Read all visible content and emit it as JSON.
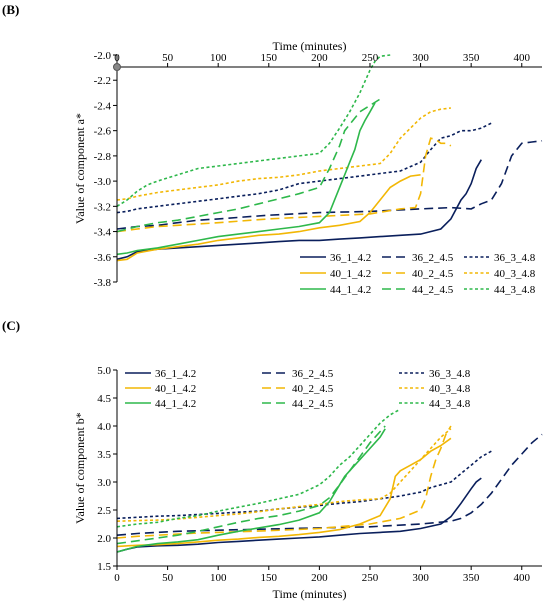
{
  "chart_data": [
    {
      "panel": "(B)",
      "type": "line",
      "xlabel": "Time (minutes)",
      "ylabel": "Value of component a*",
      "xlim": [
        0,
        420
      ],
      "ylim": [
        -3.8,
        -2.0
      ],
      "x_axis_position": "top",
      "xticks": [
        0,
        50,
        100,
        150,
        200,
        250,
        300,
        350,
        400
      ],
      "yticks": [
        "-2.0",
        "-2.2",
        "-2.4",
        "-2.6",
        "-2.8",
        "-3.0",
        "-3.2",
        "-3.4",
        "-3.6",
        "-3.8"
      ],
      "legend_position": "bottom-right",
      "grid": false,
      "series": [
        {
          "name": "36_1_4.2",
          "color": "#0a1f5c",
          "dash": "solid",
          "x": [
            0,
            10,
            20,
            40,
            60,
            80,
            100,
            120,
            140,
            160,
            180,
            200,
            220,
            240,
            260,
            280,
            300,
            320,
            330,
            340,
            345,
            350,
            355,
            360
          ],
          "y": [
            -3.62,
            -3.6,
            -3.56,
            -3.54,
            -3.53,
            -3.52,
            -3.51,
            -3.5,
            -3.49,
            -3.48,
            -3.47,
            -3.47,
            -3.46,
            -3.45,
            -3.44,
            -3.43,
            -3.42,
            -3.38,
            -3.3,
            -3.15,
            -3.1,
            -3.02,
            -2.9,
            -2.83
          ]
        },
        {
          "name": "36_2_4.5",
          "color": "#0a1f5c",
          "dash": "long",
          "x": [
            0,
            20,
            40,
            60,
            80,
            100,
            150,
            200,
            250,
            300,
            330,
            350,
            360,
            370,
            380,
            390,
            400,
            410,
            420
          ],
          "y": [
            -3.38,
            -3.36,
            -3.35,
            -3.33,
            -3.31,
            -3.3,
            -3.27,
            -3.25,
            -3.24,
            -3.22,
            -3.21,
            -3.22,
            -3.18,
            -3.15,
            -3.02,
            -2.8,
            -2.7,
            -2.69,
            -2.68
          ]
        },
        {
          "name": "36_3_4.8",
          "color": "#0a1f5c",
          "dash": "short",
          "x": [
            0,
            10,
            20,
            40,
            60,
            80,
            100,
            120,
            140,
            160,
            180,
            200,
            220,
            240,
            260,
            280,
            300,
            310,
            320,
            330,
            340,
            350,
            360,
            370
          ],
          "y": [
            -3.25,
            -3.24,
            -3.22,
            -3.2,
            -3.18,
            -3.16,
            -3.14,
            -3.12,
            -3.1,
            -3.07,
            -3.02,
            -3.0,
            -2.98,
            -2.96,
            -2.94,
            -2.92,
            -2.85,
            -2.75,
            -2.66,
            -2.64,
            -2.6,
            -2.6,
            -2.58,
            -2.54
          ]
        },
        {
          "name": "40_1_4.2",
          "color": "#f2b705",
          "dash": "solid",
          "x": [
            0,
            10,
            20,
            40,
            60,
            80,
            100,
            120,
            140,
            160,
            180,
            200,
            220,
            240,
            250,
            260,
            270,
            280,
            290,
            300
          ],
          "y": [
            -3.63,
            -3.62,
            -3.57,
            -3.54,
            -3.52,
            -3.5,
            -3.47,
            -3.45,
            -3.43,
            -3.42,
            -3.4,
            -3.37,
            -3.35,
            -3.32,
            -3.25,
            -3.15,
            -3.05,
            -3.0,
            -2.96,
            -2.95
          ]
        },
        {
          "name": "40_2_4.5",
          "color": "#f2b705",
          "dash": "long",
          "x": [
            0,
            20,
            40,
            60,
            80,
            100,
            150,
            200,
            250,
            280,
            295,
            300,
            305,
            310,
            315,
            320,
            325,
            330
          ],
          "y": [
            -3.4,
            -3.38,
            -3.36,
            -3.35,
            -3.34,
            -3.33,
            -3.3,
            -3.28,
            -3.26,
            -3.22,
            -3.21,
            -3.1,
            -2.8,
            -2.66,
            -2.67,
            -2.7,
            -2.7,
            -2.72
          ]
        },
        {
          "name": "40_3_4.8",
          "color": "#f2b705",
          "dash": "short",
          "x": [
            0,
            10,
            20,
            40,
            60,
            80,
            100,
            120,
            140,
            160,
            180,
            200,
            220,
            240,
            260,
            270,
            280,
            290,
            300,
            310,
            320,
            330
          ],
          "y": [
            -3.15,
            -3.14,
            -3.12,
            -3.09,
            -3.07,
            -3.05,
            -3.03,
            -3.0,
            -2.98,
            -2.97,
            -2.95,
            -2.92,
            -2.9,
            -2.88,
            -2.86,
            -2.78,
            -2.66,
            -2.58,
            -2.5,
            -2.45,
            -2.43,
            -2.42
          ]
        },
        {
          "name": "44_1_4.2",
          "color": "#2eb84b",
          "dash": "solid",
          "x": [
            0,
            10,
            20,
            40,
            60,
            80,
            100,
            120,
            140,
            160,
            180,
            200,
            210,
            220,
            225,
            230,
            235,
            240,
            245,
            250,
            255
          ],
          "y": [
            -3.58,
            -3.57,
            -3.55,
            -3.53,
            -3.5,
            -3.47,
            -3.44,
            -3.42,
            -3.4,
            -3.38,
            -3.36,
            -3.33,
            -3.25,
            -3.05,
            -2.95,
            -2.85,
            -2.75,
            -2.6,
            -2.52,
            -2.45,
            -2.38
          ]
        },
        {
          "name": "44_2_4.5",
          "color": "#2eb84b",
          "dash": "long",
          "x": [
            0,
            20,
            40,
            60,
            80,
            100,
            120,
            140,
            160,
            180,
            200,
            210,
            220,
            225,
            230,
            240,
            250,
            260
          ],
          "y": [
            -3.4,
            -3.36,
            -3.33,
            -3.31,
            -3.28,
            -3.25,
            -3.22,
            -3.18,
            -3.14,
            -3.1,
            -3.05,
            -2.9,
            -2.72,
            -2.6,
            -2.55,
            -2.45,
            -2.4,
            -2.35
          ]
        },
        {
          "name": "44_3_4.8",
          "color": "#2eb84b",
          "dash": "short",
          "x": [
            0,
            10,
            20,
            30,
            40,
            60,
            80,
            100,
            120,
            140,
            160,
            180,
            200,
            210,
            220,
            230,
            240,
            250,
            255,
            260,
            270
          ],
          "y": [
            -3.2,
            -3.15,
            -3.08,
            -3.03,
            -3.0,
            -2.95,
            -2.9,
            -2.88,
            -2.86,
            -2.84,
            -2.82,
            -2.8,
            -2.78,
            -2.7,
            -2.58,
            -2.45,
            -2.3,
            -2.12,
            -2.05,
            -2.01,
            -2.0
          ]
        }
      ]
    },
    {
      "panel": "(C)",
      "type": "line",
      "xlabel": "Time (minutes)",
      "ylabel": "Value of component b*",
      "xlim": [
        0,
        420
      ],
      "ylim": [
        1.5,
        5.0
      ],
      "x_axis_position": "bottom",
      "xticks": [
        0,
        50,
        100,
        150,
        200,
        250,
        300,
        350,
        400
      ],
      "yticks": [
        "1.5",
        "2.0",
        "2.5",
        "3.0",
        "3.5",
        "4.0",
        "4.5",
        "5.0"
      ],
      "legend_position": "top",
      "grid": false,
      "series": [
        {
          "name": "36_1_4.2",
          "color": "#0a1f5c",
          "dash": "solid",
          "x": [
            0,
            10,
            20,
            40,
            60,
            80,
            100,
            120,
            140,
            160,
            180,
            200,
            220,
            240,
            260,
            280,
            300,
            320,
            330,
            340,
            350,
            355,
            360
          ],
          "y": [
            1.75,
            1.8,
            1.84,
            1.86,
            1.87,
            1.89,
            1.92,
            1.94,
            1.96,
            1.98,
            2.0,
            2.02,
            2.05,
            2.08,
            2.1,
            2.12,
            2.17,
            2.25,
            2.38,
            2.62,
            2.88,
            3.0,
            3.07
          ]
        },
        {
          "name": "36_2_4.5",
          "color": "#0a1f5c",
          "dash": "long",
          "x": [
            0,
            20,
            40,
            60,
            80,
            100,
            150,
            200,
            250,
            300,
            330,
            340,
            350,
            360,
            370,
            380,
            390,
            400,
            410,
            420
          ],
          "y": [
            2.05,
            2.08,
            2.1,
            2.12,
            2.13,
            2.14,
            2.16,
            2.18,
            2.2,
            2.25,
            2.3,
            2.35,
            2.45,
            2.6,
            2.8,
            3.05,
            3.3,
            3.5,
            3.7,
            3.85
          ]
        },
        {
          "name": "36_3_4.8",
          "color": "#0a1f5c",
          "dash": "short",
          "x": [
            0,
            20,
            40,
            60,
            80,
            100,
            120,
            140,
            160,
            180,
            200,
            220,
            240,
            260,
            280,
            300,
            310,
            320,
            330,
            340,
            350,
            360,
            370
          ],
          "y": [
            2.35,
            2.37,
            2.39,
            2.4,
            2.42,
            2.44,
            2.46,
            2.48,
            2.52,
            2.55,
            2.58,
            2.62,
            2.65,
            2.7,
            2.75,
            2.82,
            2.9,
            2.95,
            3.0,
            3.15,
            3.3,
            3.45,
            3.55
          ]
        },
        {
          "name": "40_1_4.2",
          "color": "#f2b705",
          "dash": "solid",
          "x": [
            0,
            20,
            40,
            60,
            80,
            100,
            120,
            140,
            160,
            180,
            200,
            220,
            240,
            260,
            270,
            275,
            280,
            290,
            300,
            310,
            320,
            330
          ],
          "y": [
            1.85,
            1.87,
            1.88,
            1.9,
            1.93,
            1.96,
            1.98,
            2.01,
            2.03,
            2.06,
            2.1,
            2.15,
            2.25,
            2.4,
            2.7,
            3.1,
            3.2,
            3.3,
            3.4,
            3.55,
            3.65,
            3.78
          ]
        },
        {
          "name": "40_2_4.5",
          "color": "#f2b705",
          "dash": "long",
          "x": [
            0,
            20,
            40,
            60,
            80,
            100,
            150,
            200,
            250,
            280,
            300,
            305,
            310,
            315,
            320,
            325,
            330
          ],
          "y": [
            2.0,
            2.03,
            2.05,
            2.07,
            2.09,
            2.1,
            2.13,
            2.17,
            2.25,
            2.35,
            2.5,
            2.7,
            3.1,
            3.4,
            3.6,
            3.85,
            4.0
          ]
        },
        {
          "name": "40_3_4.8",
          "color": "#f2b705",
          "dash": "short",
          "x": [
            0,
            20,
            40,
            60,
            80,
            100,
            120,
            140,
            160,
            180,
            200,
            220,
            240,
            260,
            270,
            280,
            290,
            300,
            310,
            320,
            330
          ],
          "y": [
            2.3,
            2.31,
            2.32,
            2.34,
            2.37,
            2.4,
            2.43,
            2.47,
            2.52,
            2.56,
            2.6,
            2.65,
            2.68,
            2.7,
            2.8,
            3.0,
            3.2,
            3.4,
            3.6,
            3.8,
            3.95
          ]
        },
        {
          "name": "44_1_4.2",
          "color": "#2eb84b",
          "dash": "solid",
          "x": [
            0,
            20,
            40,
            60,
            80,
            100,
            120,
            140,
            160,
            180,
            200,
            210,
            220,
            225,
            230,
            240,
            250,
            255,
            260,
            265
          ],
          "y": [
            1.75,
            1.85,
            1.9,
            1.93,
            1.97,
            2.05,
            2.12,
            2.18,
            2.24,
            2.32,
            2.45,
            2.65,
            2.95,
            3.1,
            3.2,
            3.4,
            3.6,
            3.7,
            3.8,
            3.95
          ]
        },
        {
          "name": "44_2_4.5",
          "color": "#2eb84b",
          "dash": "long",
          "x": [
            0,
            20,
            40,
            60,
            80,
            100,
            120,
            140,
            160,
            180,
            200,
            210,
            220,
            230,
            240,
            250,
            260,
            265
          ],
          "y": [
            1.9,
            1.95,
            2.0,
            2.05,
            2.12,
            2.2,
            2.28,
            2.35,
            2.4,
            2.48,
            2.58,
            2.72,
            2.95,
            3.2,
            3.45,
            3.7,
            3.9,
            4.0
          ]
        },
        {
          "name": "44_3_4.8",
          "color": "#2eb84b",
          "dash": "short",
          "x": [
            0,
            20,
            40,
            60,
            80,
            100,
            120,
            140,
            160,
            180,
            200,
            210,
            220,
            230,
            240,
            250,
            260,
            270,
            280
          ],
          "y": [
            2.2,
            2.25,
            2.28,
            2.35,
            2.4,
            2.48,
            2.55,
            2.62,
            2.7,
            2.78,
            2.95,
            3.1,
            3.3,
            3.45,
            3.65,
            3.85,
            4.05,
            4.2,
            4.3
          ]
        }
      ]
    }
  ]
}
